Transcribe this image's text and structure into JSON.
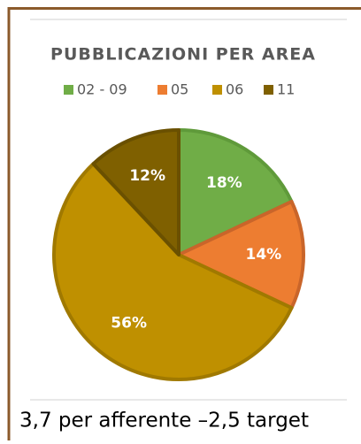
{
  "chart_data": {
    "type": "pie",
    "title": "PUBBLICAZIONI PER AREA",
    "categories": [
      "02 - 09",
      "05",
      "06",
      "11"
    ],
    "values": [
      18,
      14,
      56,
      12
    ],
    "value_labels": [
      "18%",
      "14%",
      "56%",
      "12%"
    ],
    "colors": [
      "#70ad47",
      "#ed7d31",
      "#bf9000",
      "#7f6000"
    ],
    "border_colors": [
      "#5f9a3a",
      "#c9652a",
      "#a07900",
      "#6a5000"
    ],
    "legend": "top"
  },
  "caption": "3,7 per afferente –2,5 target"
}
